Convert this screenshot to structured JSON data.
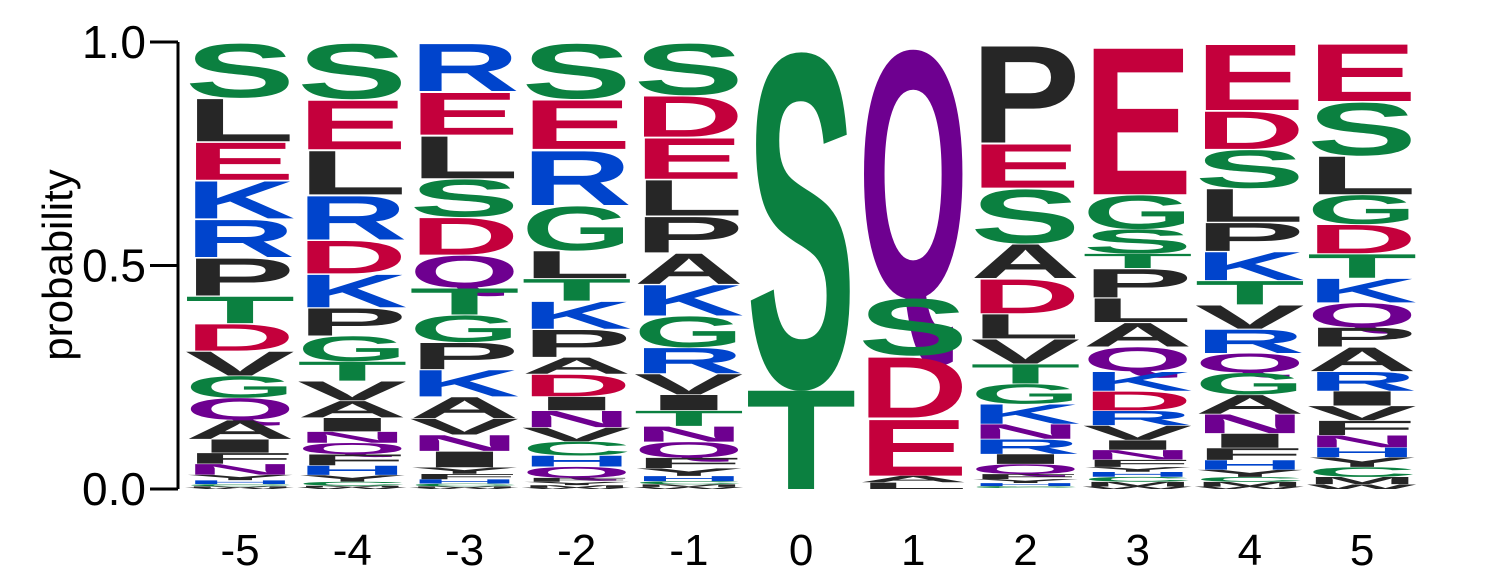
{
  "chart_data": {
    "type": "sequence_logo",
    "ylabel": "probability",
    "ylim": [
      0,
      1
    ],
    "yticks": [
      {
        "value": 0.0,
        "label": "0.0"
      },
      {
        "value": 0.5,
        "label": "0.5"
      },
      {
        "value": 1.0,
        "label": "1.0"
      }
    ],
    "colors": {
      "S": "#0b8040",
      "T": "#0b8040",
      "G": "#0b8040",
      "C": "#0b8040",
      "E": "#c4003c",
      "D": "#c4003c",
      "K": "#0044cc",
      "R": "#0044cc",
      "H": "#0044cc",
      "Q": "#6e0090",
      "N": "#6e0090",
      "L": "#262626",
      "P": "#262626",
      "A": "#262626",
      "V": "#262626",
      "I": "#262626",
      "F": "#262626",
      "M": "#262626",
      "W": "#262626",
      "Y": "#262626"
    },
    "positions": [
      {
        "label": "-5",
        "stack": [
          [
            "S",
            0.1
          ],
          [
            "L",
            0.08
          ],
          [
            "E",
            0.07
          ],
          [
            "K",
            0.07
          ],
          [
            "R",
            0.07
          ],
          [
            "P",
            0.07
          ],
          [
            "T",
            0.05
          ],
          [
            "D",
            0.05
          ],
          [
            "V",
            0.045
          ],
          [
            "G",
            0.04
          ],
          [
            "Q",
            0.04
          ],
          [
            "A",
            0.035
          ],
          [
            "I",
            0.025
          ],
          [
            "F",
            0.02
          ],
          [
            "N",
            0.02
          ],
          [
            "Y",
            0.01
          ],
          [
            "H",
            0.007
          ],
          [
            "C",
            0.004
          ],
          [
            "M",
            0.003
          ],
          [
            "W",
            0.002
          ]
        ]
      },
      {
        "label": "-4",
        "stack": [
          [
            "S",
            0.1
          ],
          [
            "E",
            0.09
          ],
          [
            "L",
            0.08
          ],
          [
            "R",
            0.08
          ],
          [
            "D",
            0.06
          ],
          [
            "K",
            0.06
          ],
          [
            "P",
            0.05
          ],
          [
            "G",
            0.045
          ],
          [
            "T",
            0.035
          ],
          [
            "V",
            0.035
          ],
          [
            "A",
            0.03
          ],
          [
            "I",
            0.025
          ],
          [
            "N",
            0.02
          ],
          [
            "Q",
            0.02
          ],
          [
            "F",
            0.02
          ],
          [
            "H",
            0.017
          ],
          [
            "Y",
            0.012
          ],
          [
            "C",
            0.007
          ],
          [
            "M",
            0.003
          ],
          [
            "W",
            0.003
          ]
        ]
      },
      {
        "label": "-3",
        "stack": [
          [
            "R",
            0.09
          ],
          [
            "E",
            0.08
          ],
          [
            "L",
            0.08
          ],
          [
            "S",
            0.07
          ],
          [
            "D",
            0.07
          ],
          [
            "Q",
            0.06
          ],
          [
            "T",
            0.05
          ],
          [
            "G",
            0.05
          ],
          [
            "P",
            0.05
          ],
          [
            "K",
            0.05
          ],
          [
            "A",
            0.04
          ],
          [
            "V",
            0.03
          ],
          [
            "N",
            0.03
          ],
          [
            "I",
            0.03
          ],
          [
            "Y",
            0.012
          ],
          [
            "F",
            0.01
          ],
          [
            "H",
            0.008
          ],
          [
            "C",
            0.005
          ],
          [
            "M",
            0.003
          ],
          [
            "W",
            0.002
          ]
        ]
      },
      {
        "label": "-2",
        "stack": [
          [
            "S",
            0.1
          ],
          [
            "E",
            0.09
          ],
          [
            "R",
            0.1
          ],
          [
            "G",
            0.08
          ],
          [
            "L",
            0.05
          ],
          [
            "T",
            0.04
          ],
          [
            "K",
            0.05
          ],
          [
            "P",
            0.05
          ],
          [
            "A",
            0.03
          ],
          [
            "D",
            0.04
          ],
          [
            "I",
            0.025
          ],
          [
            "N",
            0.03
          ],
          [
            "V",
            0.025
          ],
          [
            "C",
            0.025
          ],
          [
            "H",
            0.02
          ],
          [
            "Q",
            0.02
          ],
          [
            "F",
            0.007
          ],
          [
            "Y",
            0.006
          ],
          [
            "M",
            0.005
          ],
          [
            "W",
            0.002
          ]
        ]
      },
      {
        "label": "-1",
        "stack": [
          [
            "S",
            0.1
          ],
          [
            "D",
            0.08
          ],
          [
            "E",
            0.08
          ],
          [
            "L",
            0.07
          ],
          [
            "P",
            0.07
          ],
          [
            "A",
            0.06
          ],
          [
            "K",
            0.06
          ],
          [
            "G",
            0.06
          ],
          [
            "R",
            0.05
          ],
          [
            "V",
            0.04
          ],
          [
            "I",
            0.03
          ],
          [
            "T",
            0.03
          ],
          [
            "N",
            0.03
          ],
          [
            "Q",
            0.03
          ],
          [
            "F",
            0.02
          ],
          [
            "Y",
            0.015
          ],
          [
            "H",
            0.01
          ],
          [
            "C",
            0.006
          ],
          [
            "M",
            0.005
          ],
          [
            "W",
            0.004
          ]
        ]
      },
      {
        "label": "0",
        "stack": [
          [
            "S",
            0.77
          ],
          [
            "T",
            0.23
          ]
        ]
      },
      {
        "label": "1",
        "stack": [
          [
            "Q",
            0.57
          ],
          [
            "S",
            0.13
          ],
          [
            "D",
            0.14
          ],
          [
            "E",
            0.13
          ],
          [
            "A",
            0.015
          ],
          [
            "L",
            0.015
          ]
        ]
      },
      {
        "label": "2",
        "stack": [
          [
            "P",
            0.2
          ],
          [
            "E",
            0.09
          ],
          [
            "S",
            0.11
          ],
          [
            "A",
            0.07
          ],
          [
            "D",
            0.07
          ],
          [
            "L",
            0.05
          ],
          [
            "V",
            0.05
          ],
          [
            "T",
            0.04
          ],
          [
            "G",
            0.04
          ],
          [
            "K",
            0.04
          ],
          [
            "N",
            0.03
          ],
          [
            "R",
            0.03
          ],
          [
            "I",
            0.02
          ],
          [
            "Q",
            0.02
          ],
          [
            "F",
            0.01
          ],
          [
            "Y",
            0.008
          ],
          [
            "H",
            0.006
          ],
          [
            "C",
            0.004
          ],
          [
            "M",
            0.001
          ],
          [
            "W",
            0.001
          ]
        ]
      },
      {
        "label": "3",
        "stack": [
          [
            "E",
            0.31
          ],
          [
            "G",
            0.07
          ],
          [
            "S",
            0.05
          ],
          [
            "T",
            0.03
          ],
          [
            "P",
            0.06
          ],
          [
            "L",
            0.05
          ],
          [
            "A",
            0.05
          ],
          [
            "Q",
            0.05
          ],
          [
            "K",
            0.04
          ],
          [
            "D",
            0.04
          ],
          [
            "R",
            0.03
          ],
          [
            "V",
            0.03
          ],
          [
            "I",
            0.02
          ],
          [
            "N",
            0.02
          ],
          [
            "F",
            0.015
          ],
          [
            "Y",
            0.01
          ],
          [
            "H",
            0.01
          ],
          [
            "C",
            0.01
          ],
          [
            "M",
            0.01
          ],
          [
            "W",
            0.005
          ]
        ]
      },
      {
        "label": "4",
        "stack": [
          [
            "E",
            0.14
          ],
          [
            "D",
            0.08
          ],
          [
            "S",
            0.08
          ],
          [
            "L",
            0.07
          ],
          [
            "P",
            0.06
          ],
          [
            "K",
            0.06
          ],
          [
            "T",
            0.05
          ],
          [
            "V",
            0.05
          ],
          [
            "R",
            0.05
          ],
          [
            "Q",
            0.04
          ],
          [
            "G",
            0.045
          ],
          [
            "A",
            0.04
          ],
          [
            "N",
            0.04
          ],
          [
            "I",
            0.03
          ],
          [
            "F",
            0.025
          ],
          [
            "H",
            0.02
          ],
          [
            "Y",
            0.015
          ],
          [
            "C",
            0.01
          ],
          [
            "M",
            0.01
          ],
          [
            "W",
            0.005
          ]
        ]
      },
      {
        "label": "5",
        "stack": [
          [
            "E",
            0.12
          ],
          [
            "S",
            0.11
          ],
          [
            "L",
            0.08
          ],
          [
            "G",
            0.06
          ],
          [
            "D",
            0.06
          ],
          [
            "T",
            0.05
          ],
          [
            "K",
            0.05
          ],
          [
            "Q",
            0.05
          ],
          [
            "P",
            0.04
          ],
          [
            "A",
            0.05
          ],
          [
            "R",
            0.04
          ],
          [
            "I",
            0.03
          ],
          [
            "V",
            0.03
          ],
          [
            "F",
            0.03
          ],
          [
            "N",
            0.025
          ],
          [
            "H",
            0.02
          ],
          [
            "Y",
            0.02
          ],
          [
            "C",
            0.02
          ],
          [
            "M",
            0.015
          ],
          [
            "W",
            0.01
          ]
        ]
      }
    ]
  }
}
